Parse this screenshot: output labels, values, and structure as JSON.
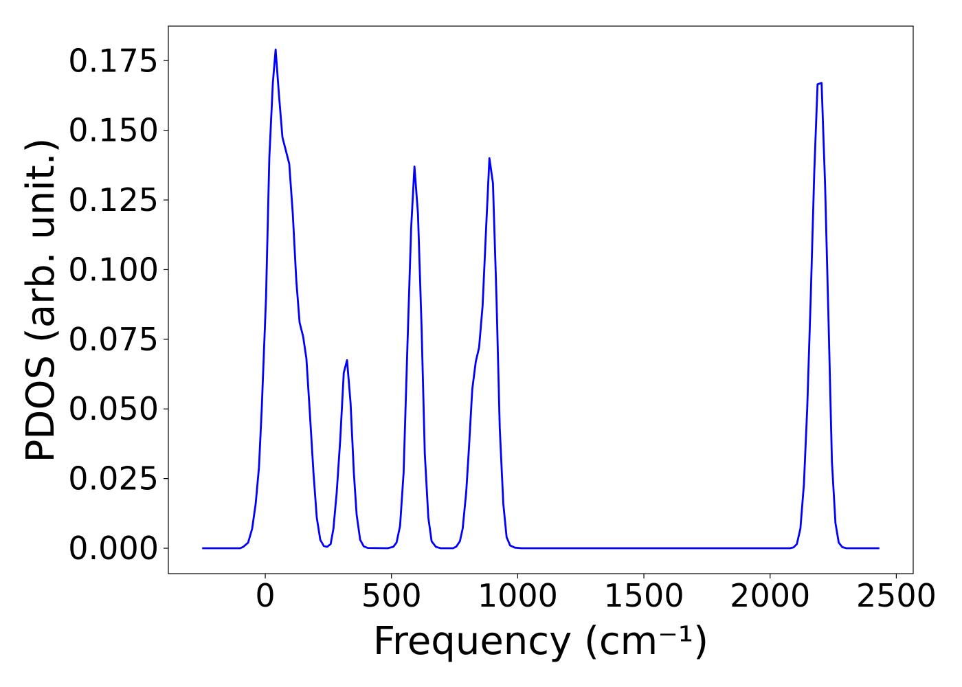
{
  "chart_data": {
    "type": "line",
    "xlabel": "Frequency (cm⁻¹)",
    "ylabel": "PDOS (arb. unit.)",
    "x": [
      -250,
      -100,
      -87,
      -68,
      -52,
      -38,
      -25,
      -14,
      3,
      16,
      30,
      41,
      54,
      68,
      95,
      109,
      123,
      136,
      150,
      163,
      177,
      191,
      204,
      218,
      232,
      245,
      259,
      270,
      283,
      297,
      311,
      324,
      338,
      351,
      362,
      376,
      390,
      406,
      485,
      507,
      520,
      534,
      548,
      564,
      578,
      591,
      605,
      619,
      632,
      646,
      659,
      676,
      695,
      744,
      757,
      771,
      782,
      796,
      807,
      820,
      834,
      847,
      861,
      875,
      888,
      902,
      916,
      929,
      943,
      956,
      970,
      989,
      1016,
      2079,
      2093,
      2106,
      2120,
      2134,
      2147,
      2161,
      2175,
      2188,
      2204,
      2218,
      2232,
      2245,
      2259,
      2272,
      2286,
      2302,
      2433
    ],
    "series": [
      {
        "name": "PDOS",
        "color": "#0000ff",
        "values": [
          0,
          0,
          0.0005,
          0.002,
          0.007,
          0.016,
          0.029,
          0.05,
          0.09,
          0.14,
          0.167,
          0.179,
          0.163,
          0.1475,
          0.138,
          0.12,
          0.096,
          0.081,
          0.076,
          0.068,
          0.048,
          0.027,
          0.011,
          0.003,
          0.0008,
          0.0005,
          0.0015,
          0.007,
          0.02,
          0.039,
          0.063,
          0.0675,
          0.052,
          0.027,
          0.012,
          0.003,
          0.0007,
          0.0001,
          0,
          0.0005,
          0.002,
          0.008,
          0.027,
          0.075,
          0.115,
          0.137,
          0.12,
          0.08,
          0.034,
          0.011,
          0.0025,
          0.0005,
          0,
          0,
          0.0006,
          0.0025,
          0.007,
          0.02,
          0.036,
          0.057,
          0.067,
          0.072,
          0.087,
          0.115,
          0.14,
          0.131,
          0.09,
          0.043,
          0.016,
          0.004,
          0.001,
          0.0002,
          0,
          0,
          0.0003,
          0.0015,
          0.007,
          0.023,
          0.05,
          0.09,
          0.135,
          0.1665,
          0.167,
          0.13,
          0.08,
          0.031,
          0.009,
          0.002,
          0.0004,
          0,
          0
        ]
      }
    ],
    "xlim": [
      -384,
      2567
    ],
    "ylim": [
      -0.00912,
      0.1874
    ],
    "xticks": [
      0,
      500,
      1000,
      1500,
      2000,
      2500
    ],
    "yticks": [
      {
        "value": 0,
        "label": "0.000"
      },
      {
        "value": 0.025,
        "label": "0.025"
      },
      {
        "value": 0.05,
        "label": "0.050"
      },
      {
        "value": 0.075,
        "label": "0.075"
      },
      {
        "value": 0.1,
        "label": "0.100"
      },
      {
        "value": 0.125,
        "label": "0.125"
      },
      {
        "value": 0.15,
        "label": "0.150"
      },
      {
        "value": 0.175,
        "label": "0.175"
      }
    ],
    "grid": false
  }
}
